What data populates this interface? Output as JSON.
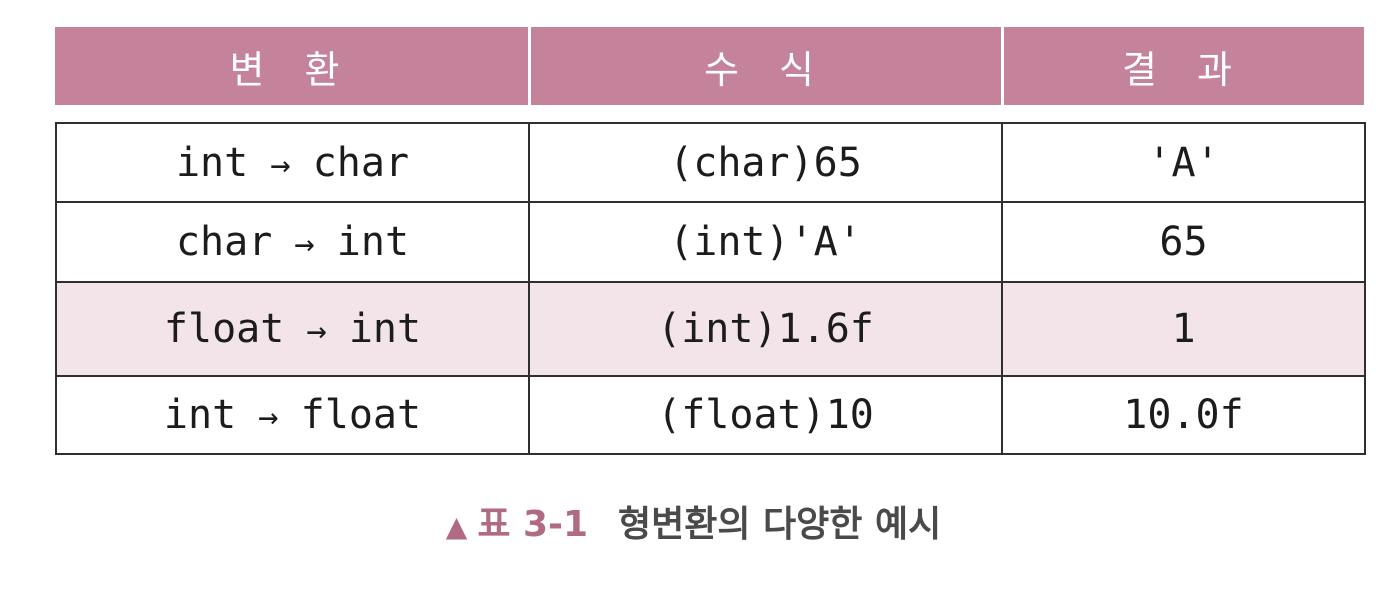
{
  "table": {
    "headers": [
      "변 환",
      "수 식",
      "결 과"
    ],
    "rows": [
      {
        "from": "int",
        "arrow": "→",
        "to": "char",
        "expr": "(char)65",
        "result": "'A'"
      },
      {
        "from": "char",
        "arrow": "→",
        "to": "int",
        "expr": "(int)'A'",
        "result": "65"
      },
      {
        "from": "float",
        "arrow": "→",
        "to": "int",
        "expr": "(int)1.6f",
        "result": "1"
      },
      {
        "from": "int",
        "arrow": "→",
        "to": "float",
        "expr": "(float)10",
        "result": "10.0f"
      }
    ],
    "highlighted_row": 2
  },
  "caption": {
    "marker": "▲",
    "label": "표 3-1",
    "text": "형변환의 다양한 예시"
  },
  "colors": {
    "header_bg": "#c4839b",
    "highlight_row_bg": "#f2e4e8",
    "caption_accent": "#b06a84"
  }
}
